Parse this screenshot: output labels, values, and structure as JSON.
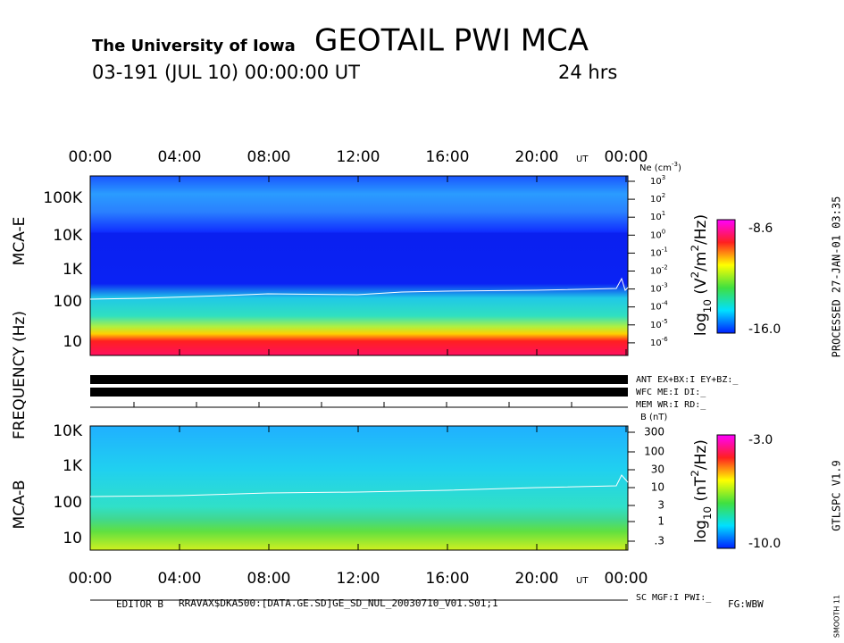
{
  "header": {
    "institution": "The University of Iowa",
    "title": "GEOTAIL PWI MCA",
    "date": "03-191 (JUL 10) 00:00:00 UT",
    "span": "24 hrs"
  },
  "time_axis": {
    "labels": [
      "00:00",
      "04:00",
      "08:00",
      "12:00",
      "16:00",
      "20:00",
      "00:00"
    ],
    "unit": "UT"
  },
  "y_title": "FREQUENCY (Hz)",
  "panel_e": {
    "name": "MCA-E",
    "freq_labels": [
      "100K",
      "10K",
      "1K",
      "100",
      "10"
    ],
    "ne_title": [
      {
        "text": "Ne (cm",
        "pos": "base"
      },
      {
        "text": "-3",
        "pos": "sup"
      },
      {
        "text": ")",
        "pos": "base"
      }
    ],
    "ne_labels": [
      [
        {
          "text": "10",
          "pos": "base"
        },
        {
          "text": "3",
          "pos": "sup"
        }
      ],
      [
        {
          "text": "10",
          "pos": "base"
        },
        {
          "text": "2",
          "pos": "sup"
        }
      ],
      [
        {
          "text": "10",
          "pos": "base"
        },
        {
          "text": "1",
          "pos": "sup"
        }
      ],
      [
        {
          "text": "10",
          "pos": "base"
        },
        {
          "text": "0",
          "pos": "sup"
        }
      ],
      [
        {
          "text": "10",
          "pos": "base"
        },
        {
          "text": "-1",
          "pos": "sup"
        }
      ],
      [
        {
          "text": "10",
          "pos": "base"
        },
        {
          "text": "-2",
          "pos": "sup"
        }
      ],
      [
        {
          "text": "10",
          "pos": "base"
        },
        {
          "text": "-3",
          "pos": "sup"
        }
      ],
      [
        {
          "text": "10",
          "pos": "base"
        },
        {
          "text": "-4",
          "pos": "sup"
        }
      ],
      [
        {
          "text": "10",
          "pos": "base"
        },
        {
          "text": "-5",
          "pos": "sup"
        }
      ],
      [
        {
          "text": "10",
          "pos": "base"
        },
        {
          "text": "-6",
          "pos": "sup"
        }
      ]
    ],
    "colorbar_title": [
      {
        "text": "log",
        "pos": "base"
      },
      {
        "text": "10",
        "pos": "sub"
      },
      {
        "text": " (V",
        "pos": "base"
      },
      {
        "text": "2",
        "pos": "sup"
      },
      {
        "text": "/m",
        "pos": "base"
      },
      {
        "text": "2",
        "pos": "sup"
      },
      {
        "text": "/Hz)",
        "pos": "base"
      }
    ],
    "colorbar_max": "-8.6",
    "colorbar_min": "-16.0"
  },
  "status": {
    "ant": "ANT EX+BX:I  EY+BZ:_",
    "wfc": "WFC ME:I   DI:_",
    "mem": "MEM WR:I   RD:_"
  },
  "panel_b": {
    "name": "MCA-B",
    "freq_labels": [
      "10K",
      "1K",
      "100",
      "10"
    ],
    "b_title": "B (nT)",
    "b_labels": [
      "300",
      "100",
      "30",
      "10",
      "3",
      "1",
      ".3"
    ],
    "colorbar_title": [
      {
        "text": "log",
        "pos": "base"
      },
      {
        "text": "10",
        "pos": "sub"
      },
      {
        "text": " (nT",
        "pos": "base"
      },
      {
        "text": "2",
        "pos": "sup"
      },
      {
        "text": "/Hz)",
        "pos": "base"
      }
    ],
    "colorbar_max": "-3.0",
    "colorbar_min": "-10.0"
  },
  "footer": {
    "sc": "SC MGF:I   PWI:_",
    "editor": "EDITOR B",
    "file": "RRAVAX$DKA500:[DATA.GE.SD]GE_SD_NUL_20030710_V01.S01;1",
    "fg": "FG:WBW"
  },
  "side": {
    "processed": "PROCESSED 27-JAN-01 03:35",
    "version": "GTLSPC  V1.9",
    "smooth": "SMOOTH 11"
  }
}
